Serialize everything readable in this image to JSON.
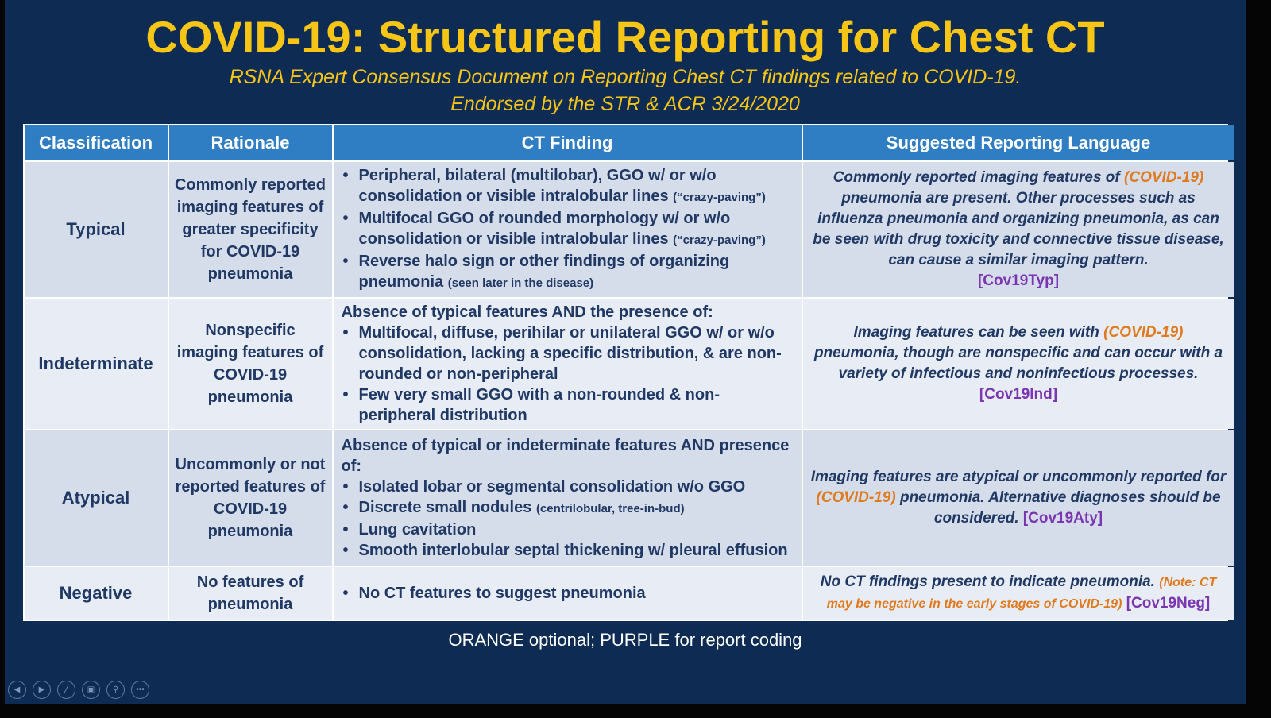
{
  "title": "COVID-19: Structured Reporting for Chest CT",
  "subtitle1": "RSNA Expert Consensus Document on Reporting Chest CT findings related to COVID-19.",
  "subtitle2": "Endorsed by the STR & ACR 3/24/2020",
  "headers": [
    "Classification",
    "Rationale",
    "CT Finding",
    "Suggested Reporting Language"
  ],
  "rows": [
    {
      "classification": "Typical",
      "rationale": "Commonly reported imaging features of greater specificity for COVID-19 pneumonia",
      "findings": [
        [
          "Peripheral, bilateral (multilobar), GGO w/ or w/o consolidation or visible intralobular lines",
          "(“crazy-paving”)"
        ],
        [
          "Multifocal GGO of rounded morphology w/ or w/o consolidation or visible intralobular lines",
          "(“crazy-paving”)"
        ],
        [
          "Reverse halo sign or other findings of organizing pneumonia",
          "(seen later in the disease)"
        ]
      ],
      "lang": {
        "a": "Commonly reported imaging features of ",
        "opt": "(COVID-19)",
        "b": " pneumonia are present. Other processes such as influenza pneumonia and organizing pneumonia, as can be seen with drug toxicity and connective tissue disease, can cause a similar imaging pattern.",
        "code": "[Cov19Typ]"
      }
    },
    {
      "classification": "Indeterminate",
      "rationale": "Nonspecific imaging features of COVID-19 pneumonia",
      "lead": "Absence of typical features AND the presence of:",
      "findings": [
        "Multifocal, diffuse, perihilar or unilateral GGO w/ or w/o consolidation, lacking a specific distribution, & are non-rounded or non-peripheral",
        "Few very small GGO with a non-rounded & non-peripheral distribution"
      ],
      "lang": {
        "a": "Imaging features can be seen with ",
        "opt": "(COVID-19)",
        "b": " pneumonia, though are nonspecific and can occur with a variety of infectious and noninfectious processes.",
        "code": "[Cov19Ind]"
      }
    },
    {
      "classification": "Atypical",
      "rationale": "Uncommonly or not reported features of COVID-19 pneumonia",
      "lead": "Absence of typical or indeterminate features AND presence of:",
      "findings": [
        [
          "Isolated lobar or segmental consolidation w/o GGO",
          ""
        ],
        [
          "Discrete small nodules",
          "(centrilobular, tree-in-bud)"
        ],
        [
          "Lung cavitation",
          ""
        ],
        [
          "Smooth interlobular septal thickening w/ pleural effusion",
          ""
        ]
      ],
      "lang": {
        "a": "Imaging features are atypical or uncommonly reported for ",
        "opt": "(COVID-19)",
        "b": " pneumonia. Alternative diagnoses should be considered.",
        "code": "[Cov19Aty]"
      }
    },
    {
      "classification": "Negative",
      "rationale": "No features of pneumonia",
      "findings": [
        "No CT features to suggest pneumonia"
      ],
      "lang": {
        "a": "No CT findings present to indicate pneumonia.",
        "note": "(Note: CT may be negative in the early stages of COVID-19)",
        "code": "[Cov19Neg]"
      }
    }
  ],
  "footer": "ORANGE optional; PURPLE for report coding",
  "colors": {
    "title": "#f6c516",
    "header": "#2f7dc3",
    "text": "#1f3864",
    "orange": "#e07a1f",
    "purple": "#7a35b0",
    "background": "#0e2b54"
  },
  "controls": [
    "previous-icon",
    "next-icon",
    "pen-icon",
    "slides-icon",
    "zoom-icon",
    "more-icon"
  ]
}
